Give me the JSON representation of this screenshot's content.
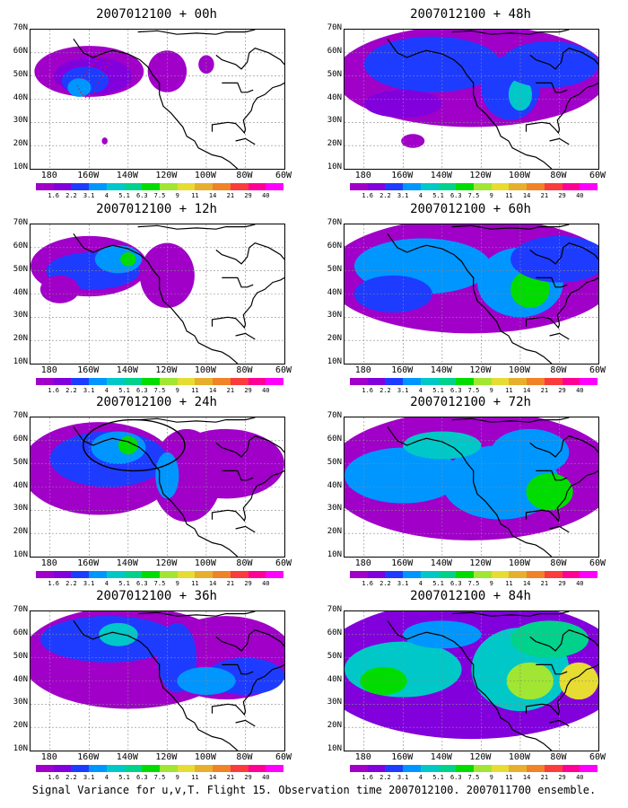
{
  "panels": [
    {
      "title": "2007012100 + 00h",
      "pattern": "p00"
    },
    {
      "title": "2007012100 + 48h",
      "pattern": "p48"
    },
    {
      "title": "2007012100 + 12h",
      "pattern": "p12"
    },
    {
      "title": "2007012100 + 60h",
      "pattern": "p60"
    },
    {
      "title": "2007012100 + 24h",
      "pattern": "p24"
    },
    {
      "title": "2007012100 + 72h",
      "pattern": "p72"
    },
    {
      "title": "2007012100 + 36h",
      "pattern": "p36"
    },
    {
      "title": "2007012100 + 84h",
      "pattern": "p84"
    }
  ],
  "lat_labels": [
    "70N",
    "60N",
    "50N",
    "40N",
    "30N",
    "20N",
    "10N"
  ],
  "lon_labels": [
    "180",
    "160W",
    "140W",
    "120W",
    "100W",
    "80W",
    "60W"
  ],
  "colorbar": {
    "labels": [
      "1.6",
      "2.2",
      "3.1",
      "4",
      "5.1",
      "6.3",
      "7.5",
      "9",
      "11",
      "14",
      "21",
      "29",
      "40"
    ],
    "colors": [
      "#a000c8",
      "#8200dc",
      "#1e3cff",
      "#0096ff",
      "#00c8c8",
      "#00d28c",
      "#00dc00",
      "#a0e632",
      "#e6dc32",
      "#e6af2d",
      "#f08228",
      "#fa3c3c",
      "#ff0096",
      "#ff00ff"
    ]
  },
  "caption": "Signal Variance for u,v,T. Flight 15. Observation time 2007012100. 2007011700 ensemble.",
  "colors": {
    "coast": "#000000",
    "grid": "#888888",
    "target_ellipse": "#000000",
    "flight_track": "#ff0000"
  }
}
